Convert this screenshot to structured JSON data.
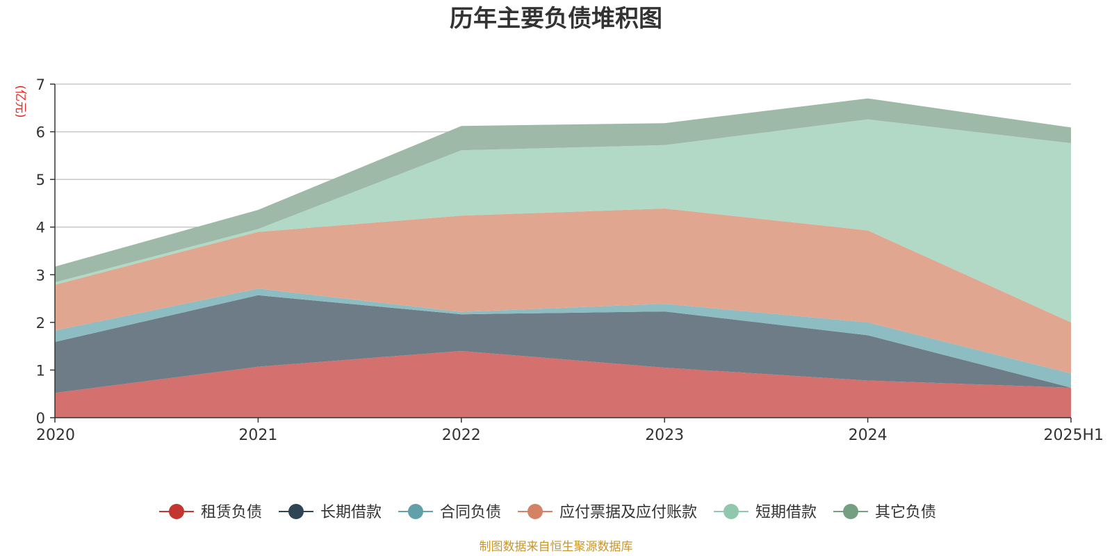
{
  "chart_data": {
    "type": "area",
    "stacked": true,
    "title": "历年主要负债堆积图",
    "unit_label": "(亿元)",
    "categories": [
      "2020",
      "2021",
      "2022",
      "2023",
      "2024",
      "2025H1"
    ],
    "y_ticks": [
      "0",
      "1",
      "2",
      "3",
      "4",
      "5",
      "6",
      "7"
    ],
    "ylim": [
      0,
      7
    ],
    "grid": true,
    "legend_position": "bottom",
    "series": [
      {
        "name": "租赁负债",
        "color": "#c23531",
        "fill": "#d4706d",
        "values": [
          0.52,
          1.07,
          1.4,
          1.05,
          0.78,
          0.63
        ]
      },
      {
        "name": "长期借款",
        "color": "#2f4554",
        "fill": "#6d7c86",
        "values": [
          1.07,
          1.5,
          0.77,
          1.18,
          0.95,
          0.0
        ]
      },
      {
        "name": "合同负债",
        "color": "#61a0a8",
        "fill": "#8dbcc2",
        "values": [
          0.24,
          0.14,
          0.05,
          0.16,
          0.27,
          0.3
        ]
      },
      {
        "name": "应付票据及应付账款",
        "color": "#d48265",
        "fill": "#e0a690",
        "values": [
          0.96,
          1.19,
          2.02,
          2.0,
          1.93,
          1.07
        ]
      },
      {
        "name": "短期借款",
        "color": "#91c7ae",
        "fill": "#b2d8c6",
        "values": [
          0.05,
          0.06,
          1.37,
          1.33,
          2.33,
          3.76
        ]
      },
      {
        "name": "其它负债",
        "color": "#749f83",
        "fill": "#9eb9a7",
        "values": [
          0.33,
          0.4,
          0.51,
          0.46,
          0.44,
          0.33
        ]
      }
    ]
  },
  "source_note": "制图数据来自恒生聚源数据库"
}
